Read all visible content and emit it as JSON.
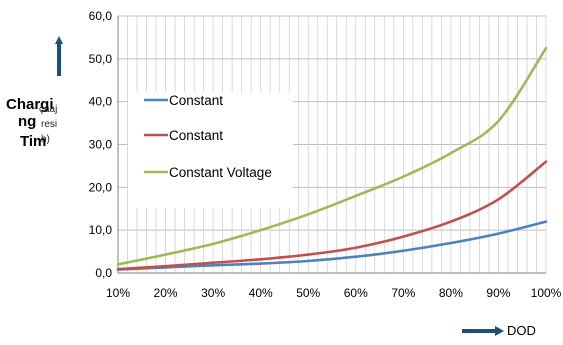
{
  "chart_data": {
    "type": "line",
    "title": "",
    "xlabel": "DOD",
    "ylabel": "Charging Time",
    "ylabel_fragments": [
      "Chargi",
      "ng",
      "Tim",
      "çaaj",
      "resi",
      "h)"
    ],
    "x": [
      0.1,
      0.2,
      0.3,
      0.4,
      0.5,
      0.6,
      0.7,
      0.8,
      0.9,
      1.0
    ],
    "x_tick_labels": [
      "10%",
      "20%",
      "30%",
      "40%",
      "50%",
      "60%",
      "70%",
      "80%",
      "90%",
      "100%"
    ],
    "xlim": [
      0.1,
      1.0
    ],
    "ylim": [
      0,
      60
    ],
    "y_ticks": [
      0,
      10,
      20,
      30,
      40,
      50,
      60
    ],
    "y_tick_labels": [
      "0,0",
      "10,0",
      "20,0",
      "30,0",
      "40,0",
      "50,0",
      "60,0"
    ],
    "grid": true,
    "legend_position": "left",
    "series": [
      {
        "name": "Constant",
        "color": "#4f81bd",
        "values": [
          0.8,
          1.3,
          1.8,
          2.2,
          2.8,
          3.8,
          5.2,
          7.0,
          9.2,
          12.0
        ]
      },
      {
        "name": "Constant",
        "color": "#c0504d",
        "values": [
          0.9,
          1.6,
          2.4,
          3.2,
          4.3,
          5.9,
          8.5,
          12.0,
          17.2,
          26.0
        ]
      },
      {
        "name": "Constant Voltage",
        "color": "#9bbb59",
        "values": [
          2.0,
          4.3,
          6.8,
          10.0,
          13.7,
          18.0,
          22.5,
          28.0,
          35.5,
          52.5
        ]
      }
    ]
  }
}
